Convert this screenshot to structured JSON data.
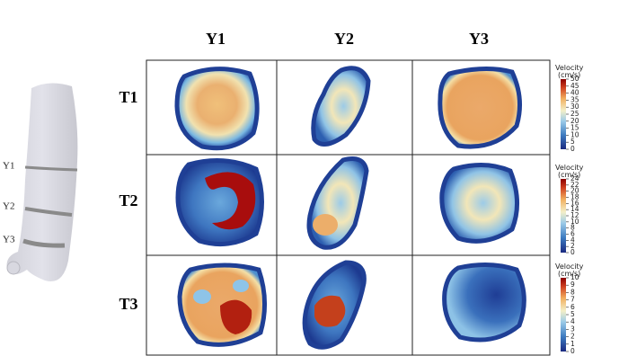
{
  "columns": [
    "Y1",
    "Y2",
    "Y3"
  ],
  "rows": [
    "T1",
    "T2",
    "T3"
  ],
  "vessel_labels": [
    "Y1",
    "Y2",
    "Y3"
  ],
  "colorbars": [
    {
      "title": "Velocity",
      "unit": "(cm/s)",
      "ticks": [
        0,
        5,
        10,
        15,
        20,
        25,
        30,
        35,
        40,
        45,
        50
      ]
    },
    {
      "title": "Velocity",
      "unit": "(cm/s)",
      "ticks": [
        0,
        2,
        4,
        6,
        8,
        10,
        12,
        14,
        16,
        18,
        20,
        22,
        24
      ]
    },
    {
      "title": "Velocity",
      "unit": "(cm/s)",
      "ticks": [
        0,
        1,
        2,
        3,
        4,
        5,
        6,
        7,
        8,
        9,
        10
      ]
    }
  ]
}
